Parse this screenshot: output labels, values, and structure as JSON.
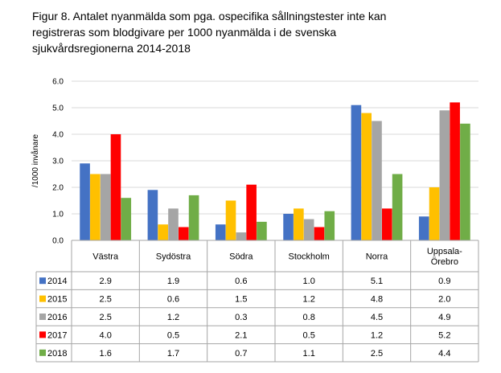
{
  "title_lines": [
    "Figur 8. Antalet nyanmälda som pga. ospecifika sållningstester inte kan",
    "registreras som blodgivare per 1000 nyanmälda i de svenska",
    "sjukvårdsregionerna 2014-2018"
  ],
  "chart_data": {
    "type": "bar",
    "title": "Figur 8. Antalet nyanmälda som pga. ospecifika sållningstester inte kan registreras som blodgivare per 1000 nyanmälda i de svenska sjukvårdsregionerna 2014-2018",
    "ylabel": "/1000 invånare",
    "xlabel": "",
    "ylim": [
      0,
      6
    ],
    "yticks": [
      "0.0",
      "1.0",
      "2.0",
      "3.0",
      "4.0",
      "5.0",
      "6.0"
    ],
    "grid": true,
    "legend_placement": "data-table-left",
    "categories": [
      "Västra",
      "Sydöstra",
      "Södra",
      "Stockholm",
      "Norra",
      "Uppsala-Örebro"
    ],
    "category_lines": [
      [
        "Västra"
      ],
      [
        "Sydöstra"
      ],
      [
        "Södra"
      ],
      [
        "Stockholm"
      ],
      [
        "Norra"
      ],
      [
        "Uppsala-",
        "Örebro"
      ]
    ],
    "series": [
      {
        "name": "2014",
        "color": "#4472C4",
        "values": [
          2.9,
          1.9,
          0.6,
          1.0,
          5.1,
          0.9
        ],
        "labels": [
          "2.9",
          "1.9",
          "0.6",
          "1.0",
          "5.1",
          "0.9"
        ]
      },
      {
        "name": "2015",
        "color": "#FFC000",
        "values": [
          2.5,
          0.6,
          1.5,
          1.2,
          4.8,
          2.0
        ],
        "labels": [
          "2.5",
          "0.6",
          "1.5",
          "1.2",
          "4.8",
          "2.0"
        ]
      },
      {
        "name": "2016",
        "color": "#A5A5A5",
        "values": [
          2.5,
          1.2,
          0.3,
          0.8,
          4.5,
          4.9
        ],
        "labels": [
          "2.5",
          "1.2",
          "0.3",
          "0.8",
          "4.5",
          "4.9"
        ]
      },
      {
        "name": "2017",
        "color": "#FF0000",
        "values": [
          4.0,
          0.5,
          2.1,
          0.5,
          1.2,
          5.2
        ],
        "labels": [
          "4.0",
          "0.5",
          "2.1",
          "0.5",
          "1.2",
          "5.2"
        ]
      },
      {
        "name": "2018",
        "color": "#70AD47",
        "values": [
          1.6,
          1.7,
          0.7,
          1.1,
          2.5,
          4.4
        ],
        "labels": [
          "1.6",
          "1.7",
          "0.7",
          "1.1",
          "2.5",
          "4.4"
        ]
      }
    ]
  }
}
